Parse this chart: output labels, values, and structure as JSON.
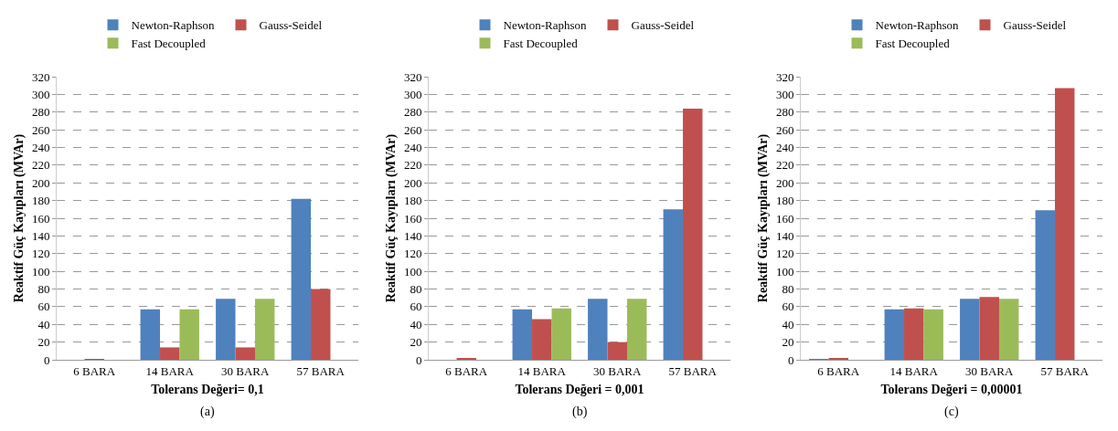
{
  "chart_data": [
    {
      "type": "bar",
      "ylabel": "Reaktif Güç Kayıpları (MVAr)",
      "xlabel": "Tolerans Değeri= 0,1",
      "annotations": [
        "(a)"
      ],
      "categories": [
        "6 BARA",
        "14 BARA",
        "30 BARA",
        "57 BARA"
      ],
      "ylim": [
        0,
        320
      ],
      "yticks": [
        0,
        20,
        40,
        60,
        80,
        100,
        120,
        140,
        160,
        180,
        200,
        220,
        240,
        260,
        280,
        300,
        320
      ],
      "grid": "y",
      "legend": "top",
      "series": [
        {
          "name": "Newton-Raphson",
          "color": "#4f81bd",
          "values": [
            0,
            57,
            69,
            182
          ]
        },
        {
          "name": "Gauss-Seidel",
          "color": "#c0504d",
          "values": [
            1,
            14,
            14,
            80
          ]
        },
        {
          "name": "Fast Decoupled",
          "color": "#9bbb59",
          "values": [
            0,
            57,
            69,
            null
          ]
        }
      ]
    },
    {
      "type": "bar",
      "ylabel": "Reaktif Güç Kayıpları (MVAr)",
      "xlabel": "Tolerans Değeri = 0,001",
      "annotations": [
        "(b)"
      ],
      "categories": [
        "6 BARA",
        "14 BARA",
        "30 BARA",
        "57 BARA"
      ],
      "ylim": [
        0,
        320
      ],
      "yticks": [
        0,
        20,
        40,
        60,
        80,
        100,
        120,
        140,
        160,
        180,
        200,
        220,
        240,
        260,
        280,
        300,
        320
      ],
      "grid": "y",
      "legend": "top",
      "series": [
        {
          "name": "Newton-Raphson",
          "color": "#4f81bd",
          "values": [
            0,
            57,
            69,
            170
          ]
        },
        {
          "name": "Gauss-Seidel",
          "color": "#c0504d",
          "values": [
            2,
            46,
            20,
            284
          ]
        },
        {
          "name": "Fast Decoupled",
          "color": "#9bbb59",
          "values": [
            0,
            58,
            69,
            null
          ]
        }
      ]
    },
    {
      "type": "bar",
      "ylabel": "Reaktif Güç Kayıpları (MVAr)",
      "xlabel": "Tolerans Değeri = 0,00001",
      "annotations": [
        "(c)"
      ],
      "categories": [
        "6 BARA",
        "14 BARA",
        "30 BARA",
        "57 BARA"
      ],
      "ylim": [
        0,
        320
      ],
      "yticks": [
        0,
        20,
        40,
        60,
        80,
        100,
        120,
        140,
        160,
        180,
        200,
        220,
        240,
        260,
        280,
        300,
        320
      ],
      "grid": "y",
      "legend": "top",
      "series": [
        {
          "name": "Newton-Raphson",
          "color": "#4f81bd",
          "values": [
            1,
            57,
            69,
            169
          ]
        },
        {
          "name": "Gauss-Seidel",
          "color": "#c0504d",
          "values": [
            2,
            58,
            71,
            307
          ]
        },
        {
          "name": "Fast Decoupled",
          "color": "#9bbb59",
          "values": [
            0,
            57,
            69,
            null
          ]
        }
      ]
    }
  ]
}
